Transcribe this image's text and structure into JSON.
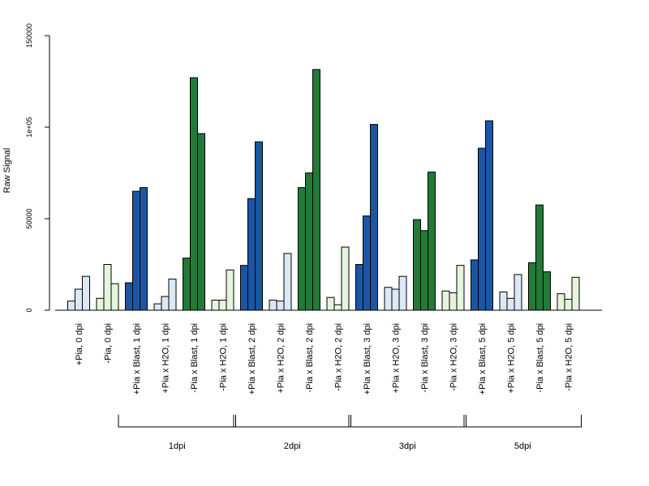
{
  "chart_data": {
    "type": "bar",
    "title": "",
    "xlabel": "",
    "ylabel": "Raw Signal",
    "ylim": [
      0,
      150000
    ],
    "yticks": [
      {
        "value": 0,
        "label": "0"
      },
      {
        "value": 50000,
        "label": "50000"
      },
      {
        "value": 100000,
        "label": "1e+05"
      },
      {
        "value": 150000,
        "label": "150000"
      }
    ],
    "colors": {
      "blast_pia_plus": "#1c56a3",
      "h2o_pia_plus": "#dce8f6",
      "blast_pia_minus": "#237a38",
      "h2o_pia_minus": "#e5f5dc"
    },
    "categories": [
      {
        "label": "+Pia, 0 dpi",
        "kind": "h2o_pia_plus",
        "values": [
          5000,
          11500,
          18500
        ]
      },
      {
        "label": "-Pia, 0 dpi",
        "kind": "h2o_pia_minus",
        "values": [
          6500,
          25000,
          14500
        ]
      },
      {
        "label": "+Pia x Blast, 1 dpi",
        "kind": "blast_pia_plus",
        "values": [
          15000,
          65000,
          67000
        ]
      },
      {
        "label": "+Pia x H2O, 1 dpi",
        "kind": "h2o_pia_plus",
        "values": [
          3500,
          7500,
          17000
        ]
      },
      {
        "label": "-Pia x Blast, 1 dpi",
        "kind": "blast_pia_minus",
        "values": [
          28500,
          127000,
          96500
        ]
      },
      {
        "label": "-Pia x H2O, 1 dpi",
        "kind": "h2o_pia_minus",
        "values": [
          5500,
          5500,
          22000
        ]
      },
      {
        "label": "+Pia x Blast, 2 dpi",
        "kind": "blast_pia_plus",
        "values": [
          24500,
          61000,
          92000
        ]
      },
      {
        "label": "+Pia x H2O, 2 dpi",
        "kind": "h2o_pia_plus",
        "values": [
          5500,
          5000,
          31000
        ]
      },
      {
        "label": "-Pia x Blast, 2 dpi",
        "kind": "blast_pia_minus",
        "values": [
          67000,
          75000,
          131500
        ]
      },
      {
        "label": "-Pia x H2O, 2 dpi",
        "kind": "h2o_pia_minus",
        "values": [
          7000,
          3000,
          34500
        ]
      },
      {
        "label": "+Pia x Blast, 3 dpi",
        "kind": "blast_pia_plus",
        "values": [
          25000,
          51500,
          101500
        ]
      },
      {
        "label": "+Pia x H2O, 3 dpi",
        "kind": "h2o_pia_plus",
        "values": [
          12500,
          11500,
          18500
        ]
      },
      {
        "label": "-Pia x Blast, 3 dpi",
        "kind": "blast_pia_minus",
        "values": [
          49500,
          43500,
          75500
        ]
      },
      {
        "label": "-Pia x H2O, 3 dpi",
        "kind": "h2o_pia_minus",
        "values": [
          10500,
          9500,
          24500
        ]
      },
      {
        "label": "+Pia x Blast, 5 dpi",
        "kind": "blast_pia_plus",
        "values": [
          27500,
          88500,
          103500
        ]
      },
      {
        "label": "+Pia x H2O, 5 dpi",
        "kind": "h2o_pia_plus",
        "values": [
          10000,
          6500,
          19500
        ]
      },
      {
        "label": "-Pia x Blast, 5 dpi",
        "kind": "blast_pia_minus",
        "values": [
          26000,
          57500,
          21000
        ]
      },
      {
        "label": "-Pia x H2O, 5 dpi",
        "kind": "h2o_pia_minus",
        "values": [
          9000,
          6000,
          18000
        ]
      }
    ],
    "groups": [
      {
        "label": "1dpi",
        "from": 2,
        "to": 5
      },
      {
        "label": "2dpi",
        "from": 6,
        "to": 9
      },
      {
        "label": "3dpi",
        "from": 10,
        "to": 13
      },
      {
        "label": "5dpi",
        "from": 14,
        "to": 17
      }
    ],
    "grid": false,
    "legend": "none"
  }
}
